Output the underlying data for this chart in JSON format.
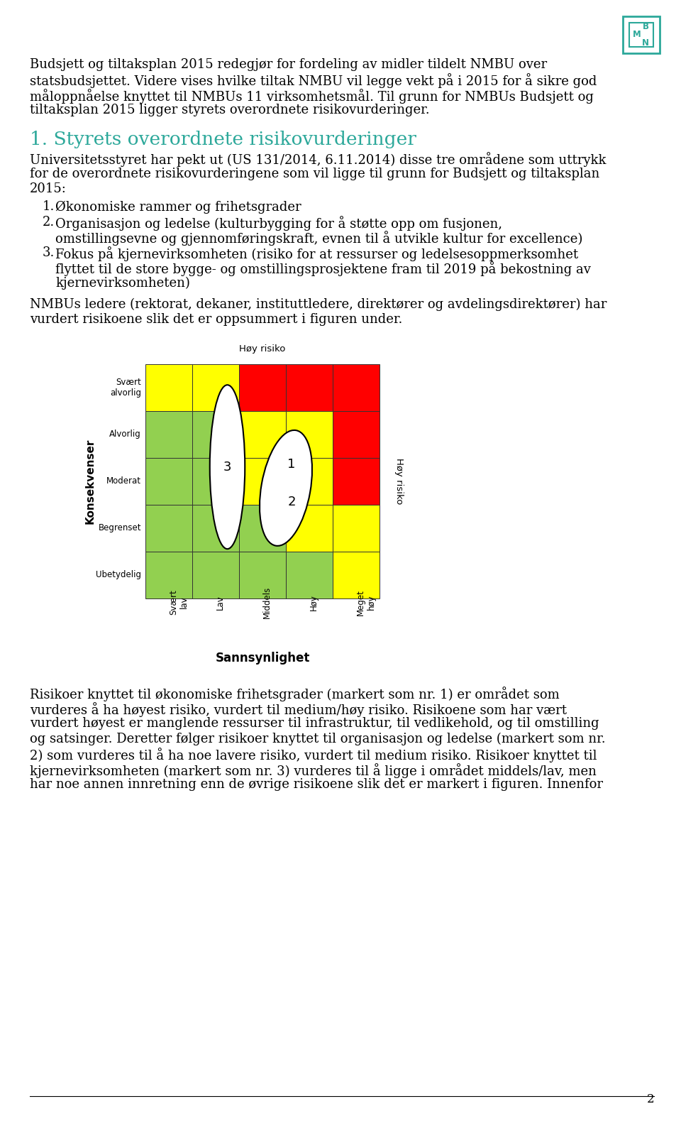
{
  "page_bg": "#ffffff",
  "logo_color": "#2ca89a",
  "heading_color": "#2ca89a",
  "text_color": "#000000",
  "intro_lines": [
    "Budsjett og tiltaksplan 2015 redegjør for fordeling av midler tildelt NMBU over",
    "statsbudsjettet. Videre vises hvilke tiltak NMBU vil legge vekt på i 2015 for å sikre god",
    "måloppnåelse knyttet til NMBUs 11 virksomhetsmål. Til grunn for NMBUs Budsjett og",
    "tiltaksplan 2015 ligger styrets overordnete risikovurderinger."
  ],
  "section_heading": "1. Styrets overordnete risikovurderinger",
  "para1_lines": [
    "Universitetsstyret har pekt ut (US 131/2014, 6.11.2014) disse tre områdene som uttrykk",
    "for de overordnete risikovurderingene som vil ligge til grunn for Budsjett og tiltaksplan",
    "2015:"
  ],
  "list_lines": [
    [
      "1.",
      "Økonomiske rammer og frihetsgrader"
    ],
    [
      "2.",
      "Organisasjon og ledelse (kulturbygging for å støtte opp om fusjonen,"
    ],
    [
      "",
      "omstillingsevne og gjennomføringskraft, evnen til å utvikle kultur for excellence)"
    ],
    [
      "3.",
      "Fokus på kjernevirksomheten (risiko for at ressurser og ledelsesoppmerksomhet"
    ],
    [
      "",
      "flyttet til de store bygge- og omstillingsprosjektene fram til 2019 på bekostning av"
    ],
    [
      "",
      "kjernevirksomheten)"
    ]
  ],
  "para2_lines": [
    "NMBUs ledere (rektorat, dekaner, instituttledere, direktører og avdelingsdirektører) har",
    "vurdert risikoene slik det er oppsummert i figuren under."
  ],
  "chart_top_label": "Høy risiko",
  "chart_right_label": "Høy risiko",
  "chart_xlabel": "Sannsynlighet",
  "chart_ylabel": "Konsekvenser",
  "y_labels": [
    "Svært\nalvorlig",
    "Alvorlig",
    "Moderat",
    "Begrenset",
    "Ubetydelig"
  ],
  "x_labels": [
    "Svært\nlav",
    "Lav",
    "Middels",
    "Høy",
    "Meget\nhøy"
  ],
  "grid_colors": [
    [
      "#ffff00",
      "#ffff00",
      "#ff0000",
      "#ff0000",
      "#ff0000"
    ],
    [
      "#92d050",
      "#92d050",
      "#ffff00",
      "#ffff00",
      "#ff0000"
    ],
    [
      "#92d050",
      "#92d050",
      "#ffff00",
      "#ffff00",
      "#ff0000"
    ],
    [
      "#92d050",
      "#92d050",
      "#92d050",
      "#ffff00",
      "#ffff00"
    ],
    [
      "#92d050",
      "#92d050",
      "#92d050",
      "#92d050",
      "#ffff00"
    ]
  ],
  "bottom_lines": [
    "Risikoer knyttet til økonomiske frihetsgrader (markert som nr. 1) er området som",
    "vurderes å ha høyest risiko, vurdert til medium/høy risiko. Risikoene som har vært",
    "vurdert høyest er manglende ressurser til infrastruktur, til vedlikehold, og til omstilling",
    "og satsinger. Deretter følger risikoer knyttet til organisasjon og ledelse (markert som nr.",
    "2) som vurderes til å ha noe lavere risiko, vurdert til medium risiko. Risikoer knyttet til",
    "kjernevirksomheten (markert som nr. 3) vurderes til å ligge i området middels/lav, men",
    "har noe annen innretning enn de øvrige risikoene slik det er markert i figuren. Innenfor"
  ],
  "page_number": "2"
}
